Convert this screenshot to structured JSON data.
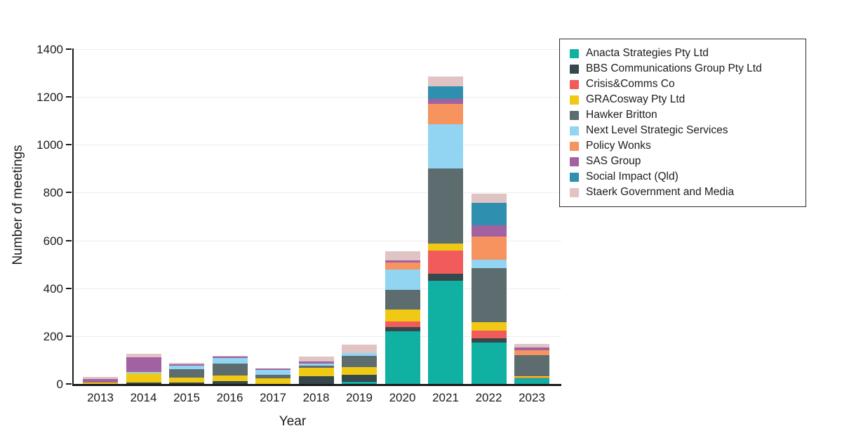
{
  "figure": {
    "background": "#ffffff",
    "axis_color": "#1a1a1a",
    "gridline_color": "#ededed"
  },
  "chart_data": {
    "type": "bar",
    "stacked": true,
    "title": "",
    "xlabel": "Year",
    "ylabel": "Number of meetings",
    "ylim": [
      0,
      1400
    ],
    "yticks": [
      0,
      200,
      400,
      600,
      800,
      1000,
      1200,
      1400
    ],
    "grid": "horizontal",
    "legend_position": "upper-right-outside",
    "categories": [
      "2013",
      "2014",
      "2015",
      "2016",
      "2017",
      "2018",
      "2019",
      "2020",
      "2021",
      "2022",
      "2023"
    ],
    "series": [
      {
        "name": "Anacta Strategies Pty Ltd",
        "color": "#10B0A3",
        "values": [
          0,
          0,
          0,
          0,
          0,
          0,
          10,
          220,
          432,
          173,
          23
        ]
      },
      {
        "name": "BBS Communications Group Pty Ltd",
        "color": "#36484B",
        "values": [
          0,
          5,
          6,
          11,
          0,
          33,
          27,
          19,
          30,
          19,
          0
        ]
      },
      {
        "name": "Crisis&Comms Co",
        "color": "#F15B5C",
        "values": [
          0,
          0,
          0,
          0,
          0,
          0,
          0,
          22,
          95,
          31,
          4
        ]
      },
      {
        "name": "GRACosway Pty Ltd",
        "color": "#EFC913",
        "values": [
          5,
          38,
          19,
          24,
          23,
          35,
          33,
          51,
          29,
          34,
          5
        ]
      },
      {
        "name": "Hawker Britton",
        "color": "#5D6C6E",
        "values": [
          0,
          0,
          38,
          49,
          15,
          8,
          47,
          81,
          314,
          226,
          88
        ]
      },
      {
        "name": "Next Level Strategic Services",
        "color": "#92D5F2",
        "values": [
          0,
          8,
          12,
          24,
          20,
          10,
          12,
          85,
          186,
          36,
          0
        ]
      },
      {
        "name": "Policy Wonks",
        "color": "#F6935F",
        "values": [
          0,
          0,
          0,
          0,
          0,
          0,
          0,
          30,
          86,
          98,
          21
        ]
      },
      {
        "name": "SAS Group",
        "color": "#A261A0",
        "values": [
          16,
          60,
          6,
          8,
          6,
          8,
          0,
          9,
          21,
          47,
          12
        ]
      },
      {
        "name": "Social Impact (Qld)",
        "color": "#2F8FAF",
        "values": [
          0,
          0,
          0,
          0,
          0,
          0,
          0,
          0,
          51,
          93,
          0
        ]
      },
      {
        "name": "Staerk Government and Media",
        "color": "#E0C3C3",
        "values": [
          8,
          15,
          6,
          2,
          0,
          20,
          34,
          37,
          42,
          38,
          15
        ]
      }
    ]
  }
}
